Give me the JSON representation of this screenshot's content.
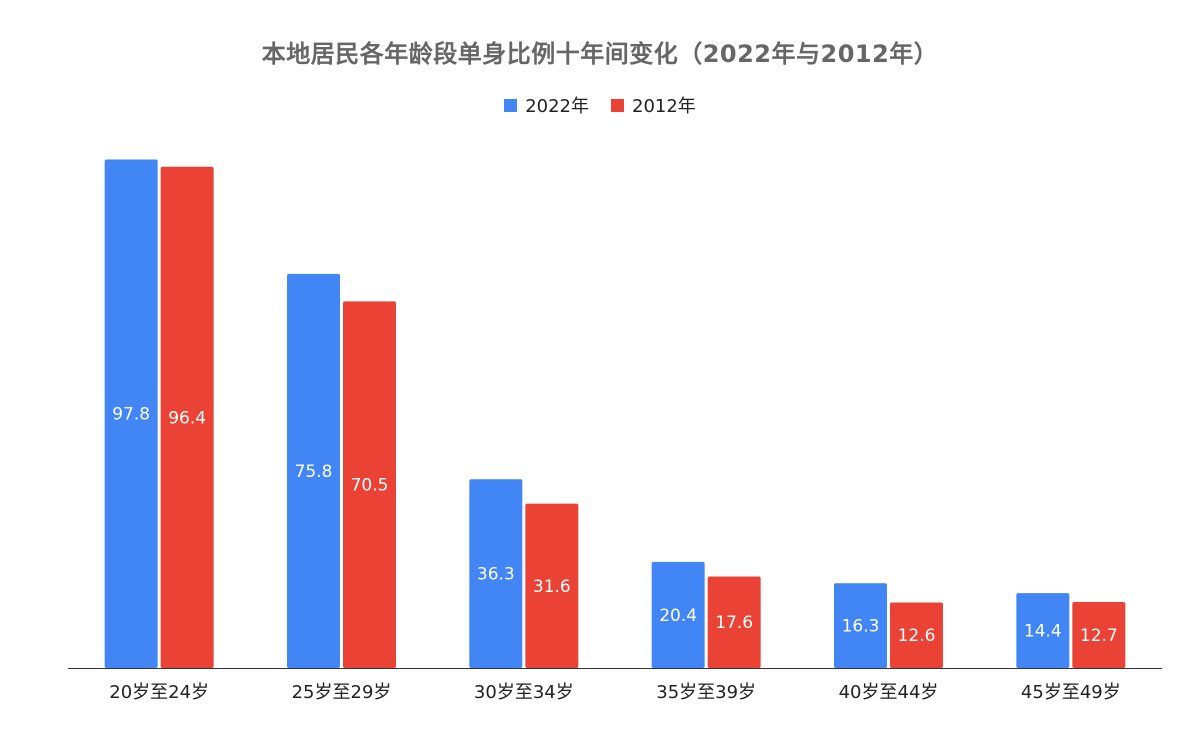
{
  "chart_data": {
    "type": "bar",
    "title": "本地居民各年龄段单身比例十年间变化（2022年与2012年）",
    "categories": [
      "20岁至24岁",
      "25岁至29岁",
      "30岁至34岁",
      "35岁至39岁",
      "40岁至44岁",
      "45岁至49岁"
    ],
    "series": [
      {
        "name": "2022年",
        "color": "#4285F4",
        "values": [
          97.8,
          75.8,
          36.3,
          20.4,
          16.3,
          14.4
        ]
      },
      {
        "name": "2012年",
        "color": "#EA4335",
        "values": [
          96.4,
          70.5,
          31.6,
          17.6,
          12.6,
          12.7
        ]
      }
    ],
    "xlabel": "",
    "ylabel": "",
    "ylim": [
      0,
      100
    ],
    "grid": false,
    "legend_position": "top",
    "data_labels": "inside-center"
  }
}
